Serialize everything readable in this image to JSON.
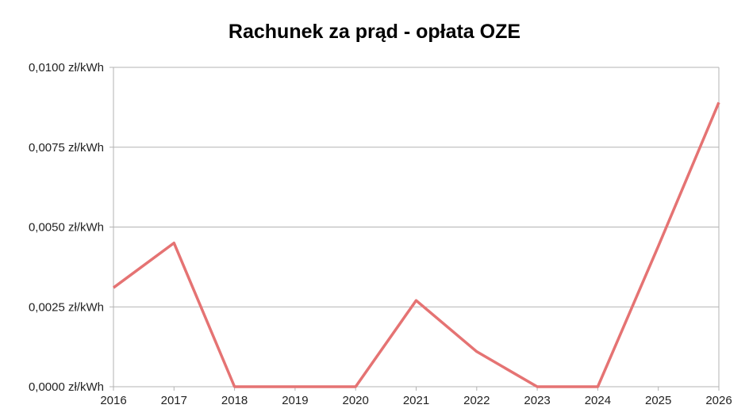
{
  "chart_data": {
    "type": "line",
    "title": "Rachunek za prąd - opłata OZE",
    "xlabel": "",
    "ylabel": "",
    "categories": [
      "2016",
      "2017",
      "2018",
      "2019",
      "2020",
      "2021",
      "2022",
      "2023",
      "2024",
      "2025",
      "2026"
    ],
    "series": [
      {
        "values": [
          0.0031,
          0.0045,
          0,
          0,
          0,
          0.0027,
          0.0011,
          0,
          0,
          0.0044,
          0.0089
        ],
        "color": "#e57373"
      }
    ],
    "ylim": [
      0,
      0.01
    ],
    "yticks": [
      0,
      0.0025,
      0.005,
      0.0075,
      0.01
    ],
    "ytick_labels": [
      "0,0000 zł/kWh",
      "0,0025 zł/kWh",
      "0,0050 zł/kWh",
      "0,0075 zł/kWh",
      "0,0100 zł/kWh"
    ],
    "grid": true,
    "legend": "none"
  }
}
